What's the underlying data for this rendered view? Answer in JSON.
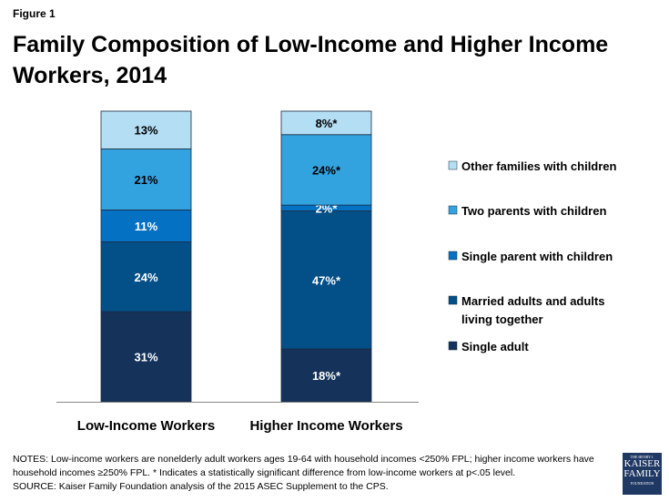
{
  "figure_label": "Figure 1",
  "chart_data": {
    "type": "stacked-bar",
    "title": "Family Composition of Low-Income and Higher Income Workers, 2014",
    "categories": [
      "Low-Income Workers",
      "Higher Income Workers"
    ],
    "series": [
      {
        "name": "Single adult",
        "color": "#15325a",
        "values": [
          31,
          18
        ],
        "labels": [
          "31%",
          "18%*"
        ],
        "label_color": "#ffffff"
      },
      {
        "name": "Married adults and adults living together",
        "color": "#034f88",
        "values": [
          24,
          47
        ],
        "labels": [
          "24%",
          "47%*"
        ],
        "label_color": "#ffffff"
      },
      {
        "name": "Single parent with children",
        "color": "#0571c2",
        "values": [
          11,
          2
        ],
        "labels": [
          "11%",
          "2%*"
        ],
        "label_color": "#ffffff"
      },
      {
        "name": "Two parents with children",
        "color": "#33a3e0",
        "values": [
          21,
          24
        ],
        "labels": [
          "21%",
          "24%*"
        ],
        "label_color": "#000000"
      },
      {
        "name": "Other families with children",
        "color": "#b3def3",
        "values": [
          13,
          8
        ],
        "labels": [
          "13%",
          "8%*"
        ],
        "label_color": "#000000"
      }
    ],
    "legend_lines": {
      "Married adults and adults living together": [
        "Married adults and adults",
        "living together"
      ]
    },
    "legend_position": "right",
    "grid": false
  },
  "notes": "NOTES: Low-income workers are nonelderly adult workers ages 19-64 with household incomes <250% FPL; higher income workers have household incomes ≥250% FPL. * Indicates a statistically significant difference from low-income workers at p<.05 level.",
  "source": "SOURCE: Kaiser Family Foundation analysis of the 2015 ASEC Supplement to the CPS.",
  "logo": {
    "line1": "THE HENRY J.",
    "line2": "KAISER",
    "line3": "FAMILY",
    "line4": "FOUNDATION"
  }
}
